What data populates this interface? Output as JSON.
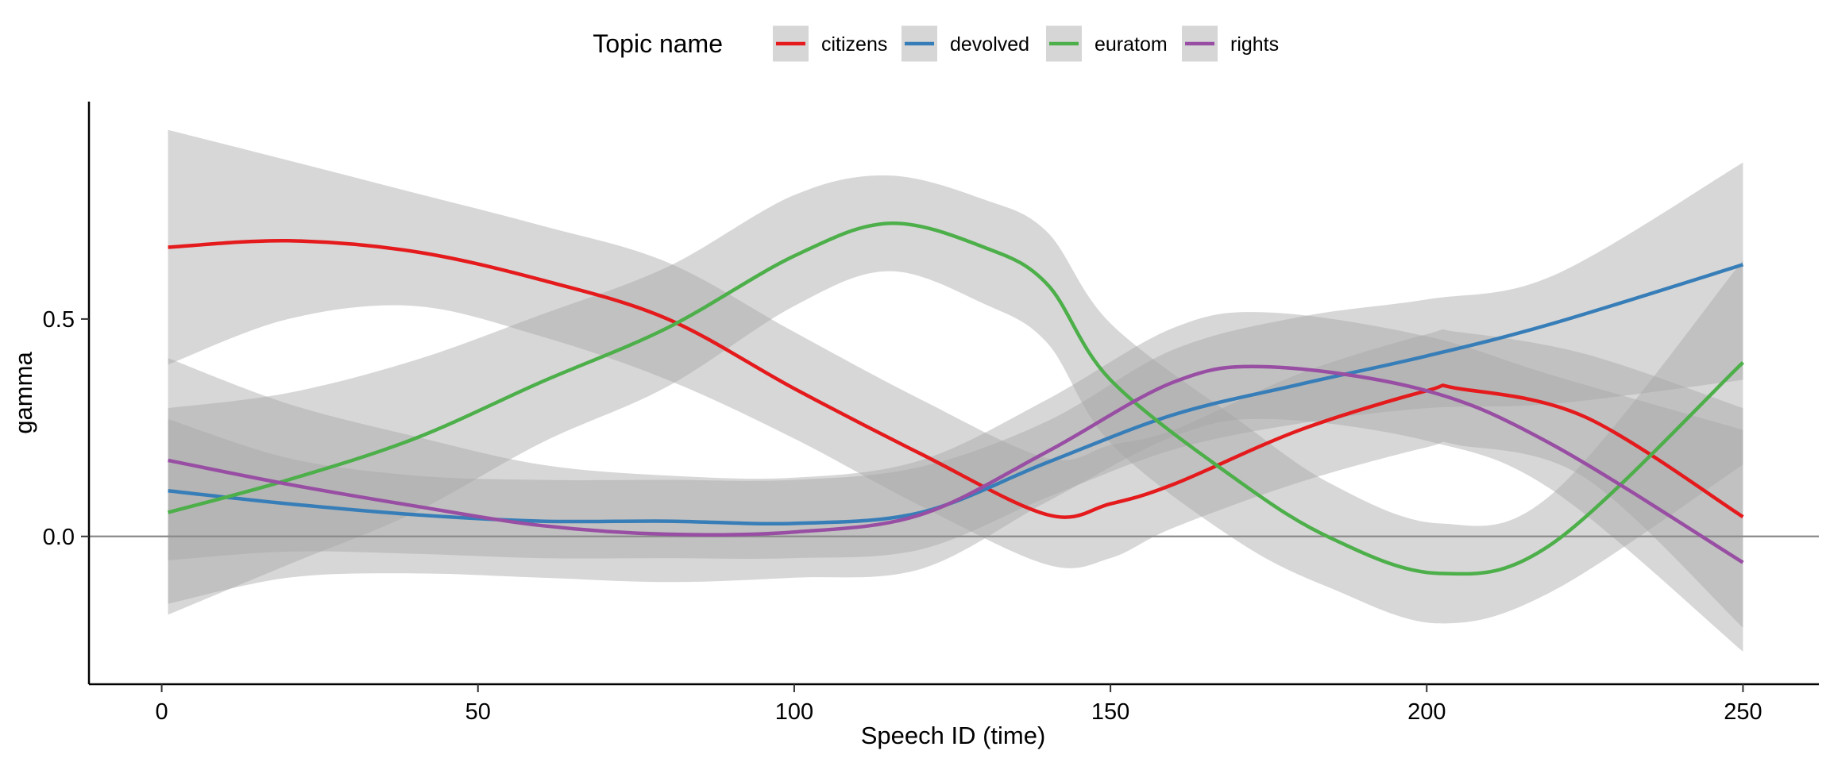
{
  "chart_data": {
    "type": "line",
    "xlabel": "Speech ID (time)",
    "ylabel": "gamma",
    "xlim": [
      -11.5,
      262
    ],
    "ylim": [
      -0.34,
      1.0
    ],
    "x_ticks": [
      0,
      50,
      100,
      150,
      200,
      250
    ],
    "x_tick_labels": [
      "0",
      "50",
      "100",
      "150",
      "200",
      "250"
    ],
    "y_ticks": [
      0,
      0.5
    ],
    "y_tick_labels": [
      "0.0",
      "0.5"
    ],
    "reference_line_y": 0,
    "grid": false,
    "legend": {
      "title": "Topic name",
      "placement": "top",
      "key_background": "#d6d6d6"
    },
    "ribbon_color": "#a6a6a6",
    "series": [
      {
        "name": "citizens",
        "color": "#e41a1c",
        "x": [
          1,
          20,
          40,
          60,
          80,
          100,
          120,
          140,
          150,
          160,
          180,
          200,
          205,
          225,
          250
        ],
        "y": [
          0.665,
          0.68,
          0.655,
          0.59,
          0.5,
          0.34,
          0.19,
          0.05,
          0.075,
          0.12,
          0.245,
          0.335,
          0.34,
          0.275,
          0.045
        ],
        "lower": [
          0.395,
          0.5,
          0.53,
          0.46,
          0.36,
          0.225,
          0.07,
          -0.065,
          -0.05,
          0.02,
          0.125,
          0.205,
          0.21,
          0.135,
          -0.21
        ],
        "upper": [
          0.935,
          0.865,
          0.79,
          0.715,
          0.63,
          0.47,
          0.315,
          0.18,
          0.21,
          0.245,
          0.375,
          0.465,
          0.47,
          0.42,
          0.295
        ]
      },
      {
        "name": "devolved",
        "color": "#377eb8",
        "x": [
          1,
          20,
          40,
          60,
          80,
          100,
          120,
          140,
          160,
          180,
          200,
          220,
          250
        ],
        "y": [
          0.105,
          0.075,
          0.05,
          0.035,
          0.035,
          0.03,
          0.055,
          0.17,
          0.28,
          0.35,
          0.415,
          0.49,
          0.625
        ],
        "lower": [
          -0.055,
          -0.035,
          -0.04,
          -0.05,
          -0.05,
          -0.05,
          -0.03,
          0.09,
          0.2,
          0.26,
          0.295,
          0.305,
          0.36
        ],
        "upper": [
          0.27,
          0.18,
          0.14,
          0.13,
          0.13,
          0.13,
          0.16,
          0.265,
          0.43,
          0.505,
          0.545,
          0.6,
          0.86
        ]
      },
      {
        "name": "euratom",
        "color": "#4daf4a",
        "x": [
          1,
          20,
          40,
          60,
          80,
          100,
          115,
          130,
          140,
          150,
          170,
          185,
          202,
          220,
          250
        ],
        "y": [
          0.055,
          0.13,
          0.225,
          0.355,
          0.48,
          0.645,
          0.72,
          0.665,
          0.58,
          0.36,
          0.13,
          -0.005,
          -0.085,
          -0.015,
          0.4
        ],
        "lower": [
          -0.18,
          -0.065,
          0.055,
          0.215,
          0.345,
          0.53,
          0.61,
          0.535,
          0.445,
          0.215,
          -0.01,
          -0.12,
          -0.2,
          -0.125,
          0.165
        ],
        "upper": [
          0.295,
          0.33,
          0.405,
          0.51,
          0.62,
          0.785,
          0.83,
          0.775,
          0.7,
          0.49,
          0.27,
          0.12,
          0.03,
          0.1,
          0.635
        ]
      },
      {
        "name": "rights",
        "color": "#984ea3",
        "x": [
          1,
          20,
          40,
          60,
          80,
          100,
          120,
          140,
          160,
          175,
          200,
          220,
          250
        ],
        "y": [
          0.175,
          0.12,
          0.07,
          0.025,
          0.005,
          0.01,
          0.05,
          0.195,
          0.355,
          0.39,
          0.335,
          0.21,
          -0.06
        ],
        "lower": [
          -0.155,
          -0.095,
          -0.085,
          -0.095,
          -0.105,
          -0.095,
          -0.075,
          0.08,
          0.23,
          0.27,
          0.22,
          0.105,
          -0.265
        ],
        "upper": [
          0.41,
          0.305,
          0.23,
          0.165,
          0.14,
          0.135,
          0.175,
          0.315,
          0.48,
          0.515,
          0.46,
          0.37,
          0.245
        ]
      }
    ]
  }
}
